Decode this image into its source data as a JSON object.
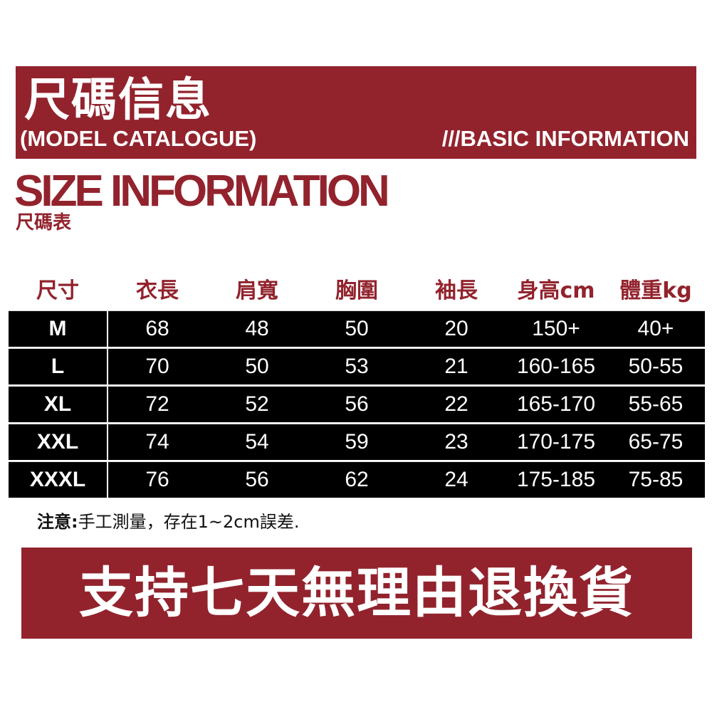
{
  "banner": {
    "title": "尺碼信息",
    "subtitle": "(MODEL CATALOGUE)",
    "basic": "///BASIC INFORMATION"
  },
  "section": {
    "title": "SIZE INFORMATION",
    "subtitle": "尺碼表"
  },
  "table": {
    "headers": [
      "尺寸",
      "衣長",
      "肩寬",
      "胸圍",
      "袖長",
      "身高cm",
      "體重kg"
    ],
    "rows": [
      [
        "M",
        "68",
        "48",
        "50",
        "20",
        "150+",
        "40+"
      ],
      [
        "L",
        "70",
        "50",
        "53",
        "21",
        "160-165",
        "50-55"
      ],
      [
        "XL",
        "72",
        "52",
        "56",
        "22",
        "165-170",
        "55-65"
      ],
      [
        "XXL",
        "74",
        "54",
        "59",
        "23",
        "170-175",
        "65-75"
      ],
      [
        "XXXL",
        "76",
        "56",
        "62",
        "24",
        "175-185",
        "75-85"
      ]
    ]
  },
  "note": {
    "label": "注意:",
    "text": "手工測量，存在1~2cm誤差."
  },
  "footer": {
    "text": "支持七天無理由退換貨"
  },
  "colors": {
    "brand": "#92232d",
    "table_bg": "#000000"
  }
}
